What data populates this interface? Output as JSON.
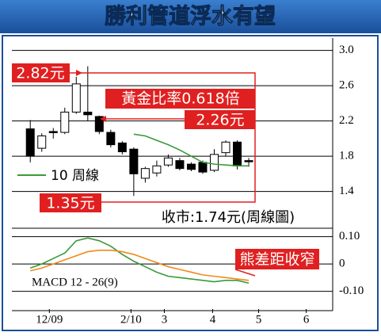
{
  "chart_data": {
    "type": "candlestick",
    "title": "勝利管道浮水有望",
    "x": [
      0,
      1,
      2,
      3,
      4,
      5,
      6,
      7,
      8,
      9,
      10,
      11,
      12,
      13,
      14,
      15,
      16,
      17,
      18,
      19
    ],
    "open": [
      2.11,
      1.89,
      2.08,
      2.07,
      2.3,
      2.3,
      2.25,
      2.07,
      1.95,
      1.88,
      1.55,
      1.61,
      1.7,
      1.75,
      1.71,
      1.73,
      1.64,
      1.84,
      1.96,
      1.75
    ],
    "high": [
      2.21,
      2.06,
      2.12,
      2.35,
      2.7,
      2.82,
      2.26,
      2.1,
      1.97,
      1.9,
      1.68,
      1.75,
      1.82,
      1.78,
      1.73,
      1.75,
      1.88,
      1.98,
      1.98,
      1.78
    ],
    "low": [
      1.73,
      1.85,
      2.0,
      2.05,
      2.28,
      2.2,
      2.05,
      1.9,
      1.82,
      1.35,
      1.5,
      1.57,
      1.68,
      1.64,
      1.63,
      1.6,
      1.62,
      1.8,
      1.65,
      1.68
    ],
    "close": [
      1.8,
      2.03,
      2.07,
      2.3,
      2.62,
      2.27,
      2.08,
      1.93,
      1.85,
      1.6,
      1.66,
      1.69,
      1.78,
      1.66,
      1.65,
      1.62,
      1.82,
      1.96,
      1.69,
      1.74
    ],
    "up_color": "#ffffff",
    "down_color": "#000000",
    "series": [
      {
        "name": "10 周線",
        "color": "#3a9a3a",
        "values": [
          null,
          null,
          null,
          null,
          null,
          null,
          null,
          null,
          null,
          2.05,
          2.03,
          1.98,
          1.93,
          1.87,
          1.8,
          1.73,
          1.71,
          1.7,
          1.69,
          1.69
        ]
      }
    ],
    "xlim": [
      -1.6,
      26.3
    ],
    "ylim": [
      1.01,
      3.14
    ],
    "yticks": [
      {
        "value": 3,
        "label": "3.0"
      },
      2.6,
      2.2,
      1.8,
      1.4
    ],
    "xticks": [
      {
        "value": 1.66,
        "label": "12/09"
      },
      {
        "value": 8.76,
        "label": "2/10"
      },
      {
        "value": 11.66,
        "label": "3"
      },
      {
        "value": 15.86,
        "label": "4"
      },
      {
        "value": 19.86,
        "label": "5"
      },
      {
        "value": 24,
        "label": "6"
      }
    ],
    "grid": true,
    "annotations": [
      "2.82元",
      "黃金比率0.618倍",
      "2.26元",
      "1.35元",
      "收市:1.74元(周線圖)",
      "熊差距收窄"
    ],
    "macd": {
      "title": "MACD 12 - 26(9)",
      "ylim": [
        -0.165,
        0.125
      ],
      "yticks": [
        {
          "value": 0.1,
          "label": "0.10"
        },
        0,
        {
          "value": -0.1,
          "label": "-0.10"
        }
      ],
      "series": [
        {
          "color": "#3a9a3a",
          "values": [
            -0.015,
            0.0,
            0.02,
            0.04,
            0.085,
            0.095,
            0.085,
            0.065,
            0.035,
            0.01,
            -0.01,
            -0.03,
            -0.045,
            -0.05,
            -0.055,
            -0.06,
            -0.065,
            -0.06,
            -0.06,
            -0.07
          ]
        },
        {
          "color": "#f08a1c",
          "values": [
            -0.025,
            -0.015,
            0.0,
            0.015,
            0.03,
            0.045,
            0.05,
            0.05,
            0.045,
            0.035,
            0.02,
            0.005,
            -0.01,
            -0.02,
            -0.03,
            -0.04,
            -0.045,
            -0.05,
            -0.055,
            -0.06
          ]
        }
      ]
    }
  }
}
